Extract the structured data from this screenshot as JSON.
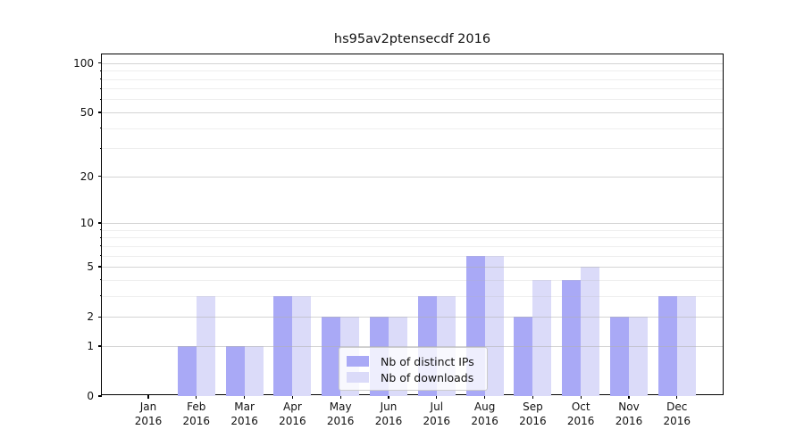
{
  "title": "hs95av2ptensecdf 2016",
  "chart_data": {
    "type": "bar",
    "title": "hs95av2ptensecdf 2016",
    "categories": [
      "Jan 2016",
      "Feb 2016",
      "Mar 2016",
      "Apr 2016",
      "May 2016",
      "Jun 2016",
      "Jul 2016",
      "Aug 2016",
      "Sep 2016",
      "Oct 2016",
      "Nov 2016",
      "Dec 2016"
    ],
    "x_tick_line1": [
      "Jan",
      "Feb",
      "Mar",
      "Apr",
      "May",
      "Jun",
      "Jul",
      "Aug",
      "Sep",
      "Oct",
      "Nov",
      "Dec"
    ],
    "x_tick_line2": [
      "2016",
      "2016",
      "2016",
      "2016",
      "2016",
      "2016",
      "2016",
      "2016",
      "2016",
      "2016",
      "2016",
      "2016"
    ],
    "series": [
      {
        "name": "Nb of distinct IPs",
        "color": "#a9a9f6",
        "values": [
          0,
          1,
          1,
          3,
          2,
          2,
          3,
          6,
          2,
          4,
          2,
          3
        ]
      },
      {
        "name": "Nb of downloads",
        "color": "#dbdbf9",
        "values": [
          0,
          3,
          1,
          3,
          2,
          2,
          3,
          6,
          4,
          5,
          2,
          3
        ]
      }
    ],
    "y_scale": "log1p",
    "ylim": [
      0,
      100
    ],
    "y_major_ticks": [
      0,
      1,
      2,
      5,
      10,
      20,
      50,
      100
    ],
    "y_minor_ticks": [
      3,
      4,
      6,
      7,
      8,
      9,
      30,
      40,
      60,
      70,
      80,
      90
    ],
    "grid": "horizontal, major and minor, drawn above bars",
    "legend_position": "lower center",
    "xlabel": "",
    "ylabel": ""
  },
  "colors": {
    "background": "#ffffff",
    "spine": "#000000",
    "grid_major": "#d3d3d3",
    "grid_minor": "#ebebeb",
    "series_dark": "#a9a9f6",
    "series_light": "#dbdbf9",
    "legend_border": "#cccccc"
  }
}
